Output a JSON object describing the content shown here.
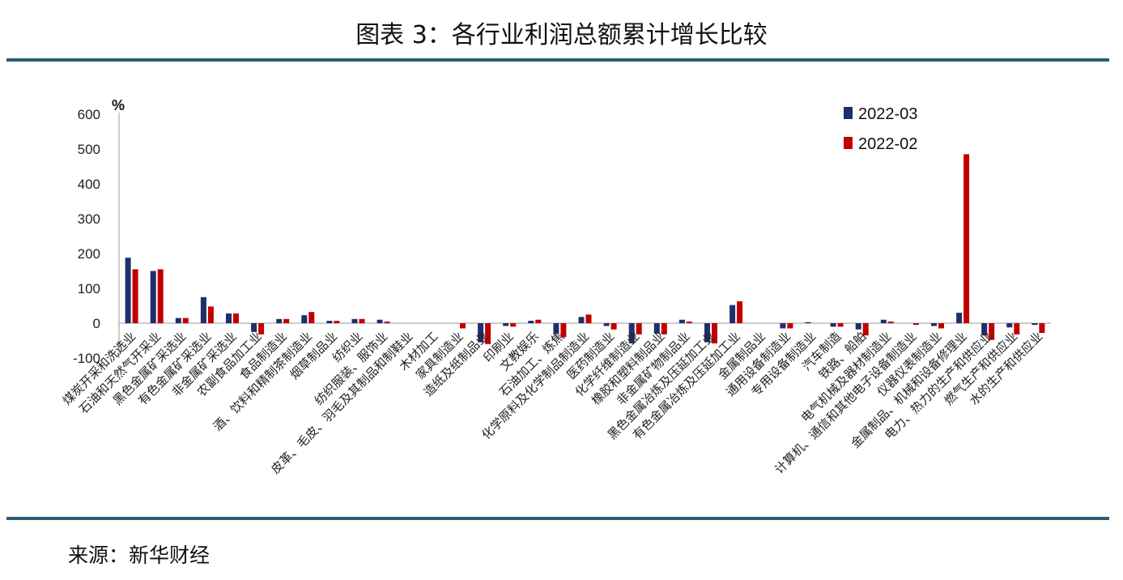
{
  "title": "图表 3：各行业利润总额累计增长比较",
  "source": "来源：新华财经",
  "chart_data": {
    "type": "bar",
    "unit": "%",
    "ylim": [
      -100,
      600
    ],
    "yticks": [
      600,
      500,
      400,
      300,
      200,
      100,
      0,
      -100
    ],
    "legend_position": "top-right",
    "categories": [
      "煤炭开采和洗选业",
      "石油和天然气开采业",
      "黑色金属矿采选业",
      "有色金属矿采选业",
      "非金属矿采选业",
      "农副食品加工业",
      "食品制造业",
      "酒、饮料和精制茶制造业",
      "烟草制品业",
      "纺织业",
      "纺织服装、服饰业",
      "皮革、毛皮、羽毛及其制品和制鞋业",
      "木材加工",
      "家具制造业",
      "造纸及纸制品业",
      "印刷业",
      "文教娱乐",
      "石油加工、炼焦",
      "化学原料及化学制品制造业",
      "医药制造业",
      "化学纤维制造业",
      "橡胶和塑料制品业",
      "非金属矿物制品业",
      "黑色金属冶炼及压延加工业",
      "有色金属冶炼及压延加工业",
      "金属制品业",
      "通用设备制造业",
      "专用设备制造业",
      "汽车制造",
      "铁路、船舶",
      "电气机械及器材制造业",
      "计算机、通信和其他电子设备制造业",
      "仪器仪表制造业",
      "金属制品、机械和设备修理业",
      "电力、热力的生产和供应业",
      "燃气生产和供应业",
      "水的生产和供应业"
    ],
    "series": [
      {
        "name": "2022-03",
        "color": "#1f2f6b",
        "values": [
          188,
          150,
          15,
          75,
          28,
          -25,
          12,
          23,
          7,
          12,
          10,
          0,
          0,
          0,
          -55,
          -8,
          7,
          -30,
          18,
          -8,
          -58,
          -30,
          10,
          -55,
          52,
          0,
          -15,
          3,
          -10,
          -18,
          10,
          0,
          -8,
          30,
          -35,
          -12,
          -5
        ]
      },
      {
        "name": "2022-02",
        "color": "#c00000",
        "values": [
          155,
          155,
          15,
          48,
          28,
          -32,
          12,
          32,
          7,
          12,
          5,
          0,
          0,
          -15,
          -60,
          -10,
          10,
          -40,
          25,
          -18,
          -32,
          -32,
          5,
          -58,
          63,
          0,
          -15,
          0,
          -10,
          -35,
          5,
          -5,
          -15,
          485,
          -48,
          -32,
          -28
        ]
      }
    ]
  }
}
